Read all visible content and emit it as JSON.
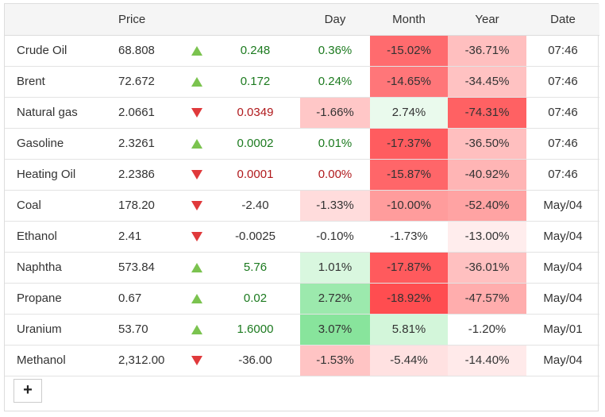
{
  "headers": {
    "name": "",
    "price": "Price",
    "arrow": "",
    "change": "",
    "day": "Day",
    "month": "Month",
    "year": "Year",
    "date": "Date"
  },
  "rows": [
    {
      "name": "Crude Oil",
      "price": "68.808",
      "dir": "up",
      "change": "0.248",
      "day": "0.36%",
      "month": "-15.02%",
      "year": "-36.71%",
      "date": "07:46",
      "day_bg": "#ffffff",
      "month_bg": "#ff6b6e",
      "year_bg": "#ffbfbf"
    },
    {
      "name": "Brent",
      "price": "72.672",
      "dir": "up",
      "change": "0.172",
      "day": "0.24%",
      "month": "-14.65%",
      "year": "-34.45%",
      "date": "07:46",
      "day_bg": "#ffffff",
      "month_bg": "#ff7679",
      "year_bg": "#ffc2c2"
    },
    {
      "name": "Natural gas",
      "price": "2.0661",
      "dir": "down",
      "change": "0.0349",
      "day": "-1.66%",
      "month": "2.74%",
      "year": "-74.31%",
      "date": "07:46",
      "day_bg": "#ffc7c7",
      "month_bg": "#eafaed",
      "year_bg": "#ff6163"
    },
    {
      "name": "Gasoline",
      "price": "2.3261",
      "dir": "up",
      "change": "0.0002",
      "day": "0.01%",
      "month": "-17.37%",
      "year": "-36.50%",
      "date": "07:46",
      "day_bg": "#ffffff",
      "month_bg": "#ff5c5f",
      "year_bg": "#ffbfbf"
    },
    {
      "name": "Heating Oil",
      "price": "2.2386",
      "dir": "down",
      "change": "0.0001",
      "day": "0.00%",
      "month": "-15.87%",
      "year": "-40.92%",
      "date": "07:46",
      "day_bg": "#ffffff",
      "month_bg": "#ff6669",
      "year_bg": "#ffb5b5"
    },
    {
      "name": "Coal",
      "price": "178.20",
      "dir": "down",
      "change": "-2.40",
      "day": "-1.33%",
      "month": "-10.00%",
      "year": "-52.40%",
      "date": "May/04",
      "day_bg": "#ffdcdc",
      "month_bg": "#ff9c9c",
      "year_bg": "#ffa3a3"
    },
    {
      "name": "Ethanol",
      "price": "2.41",
      "dir": "down",
      "change": "-0.0025",
      "day": "-0.10%",
      "month": "-1.73%",
      "year": "-13.00%",
      "date": "May/04",
      "day_bg": "#ffffff",
      "month_bg": "#ffffff",
      "year_bg": "#ffeded"
    },
    {
      "name": "Naphtha",
      "price": "573.84",
      "dir": "up",
      "change": "5.76",
      "day": "1.01%",
      "month": "-17.87%",
      "year": "-36.01%",
      "date": "May/04",
      "day_bg": "#d9f7df",
      "month_bg": "#ff5a5d",
      "year_bg": "#ffc0c0"
    },
    {
      "name": "Propane",
      "price": "0.67",
      "dir": "up",
      "change": "0.02",
      "day": "2.72%",
      "month": "-18.92%",
      "year": "-47.57%",
      "date": "May/04",
      "day_bg": "#9ce9ad",
      "month_bg": "#ff4d50",
      "year_bg": "#ffadad"
    },
    {
      "name": "Uranium",
      "price": "53.70",
      "dir": "up",
      "change": "1.6000",
      "day": "3.07%",
      "month": "5.81%",
      "year": "-1.20%",
      "date": "May/01",
      "day_bg": "#88e49c",
      "month_bg": "#d3f6da",
      "year_bg": "#ffffff"
    },
    {
      "name": "Methanol",
      "price": "2,312.00",
      "dir": "down",
      "change": "-36.00",
      "day": "-1.53%",
      "month": "-5.44%",
      "year": "-14.40%",
      "date": "May/04",
      "day_bg": "#ffc4c4",
      "month_bg": "#ffe1e1",
      "year_bg": "#ffeaea"
    }
  ],
  "add_button": {
    "label": "+"
  },
  "colors": {
    "up": "#7bc34f",
    "down": "#e0393b",
    "pos_text": "#1c7a1f",
    "neg_text": "#b0191c"
  }
}
